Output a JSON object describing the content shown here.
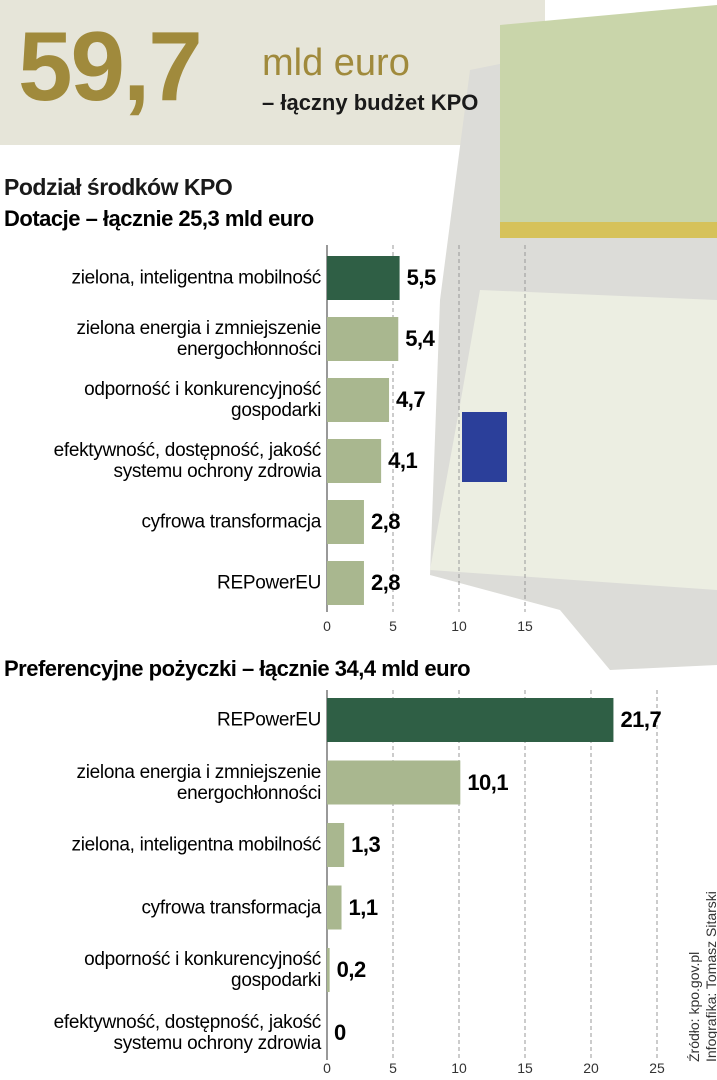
{
  "header": {
    "number": "59,7",
    "unit": "mld euro",
    "caption": "– łączny budżet KPO"
  },
  "subtitle": "Podział środków KPO",
  "source": "Źródło: kpo.gov.pl",
  "credit": "Infografika: Tomasz Sitarski",
  "chart_data": [
    {
      "type": "bar",
      "orientation": "horizontal",
      "title": "Dotacje – łącznie 25,3 mld euro",
      "categories": [
        "zielona, inteligentna\nmobilność",
        "zielona energia i zmniejszenie\nenergochłonności",
        "odporność i konkurencyjność\ngospodarki",
        "efektywność, dostępność,\njakość systemu ochrony\nzdrowia",
        "cyfrowa transformacja",
        "REPowerEU"
      ],
      "values": [
        5.5,
        5.4,
        4.7,
        4.1,
        2.8,
        2.8
      ],
      "value_labels": [
        "5,5",
        "5,4",
        "4,7",
        "4,1",
        "2,8",
        "2,8"
      ],
      "colors": [
        "#2f5f45",
        "#a9b78f",
        "#a9b78f",
        "#a9b78f",
        "#a9b78f",
        "#a9b78f"
      ],
      "xlim": [
        0,
        15
      ],
      "xticks": [
        0,
        5,
        10,
        15
      ],
      "grid": true
    },
    {
      "type": "bar",
      "orientation": "horizontal",
      "title": "Preferencyjne pożyczki – łącznie 34,4 mld euro",
      "categories": [
        "REPowerEU",
        "zielona energia i zmniejszenie\nenergochłonności",
        "zielona, inteligentna\nmobilność",
        "cyfrowa transformacja",
        "odporność\ni konkurencyjność gospodarki",
        "efektywność, dostępność,\njakość systemu ochrony\nzdrowia"
      ],
      "values": [
        21.7,
        10.1,
        1.3,
        1.1,
        0.2,
        0
      ],
      "value_labels": [
        "21,7",
        "10,1",
        "1,3",
        "1,1",
        "0,2",
        "0"
      ],
      "colors": [
        "#2f5f45",
        "#a9b78f",
        "#a9b78f",
        "#a9b78f",
        "#a9b78f",
        "#a9b78f"
      ],
      "xlim": [
        0,
        25
      ],
      "xticks": [
        0,
        5,
        10,
        15,
        20,
        25
      ],
      "grid": true
    }
  ]
}
